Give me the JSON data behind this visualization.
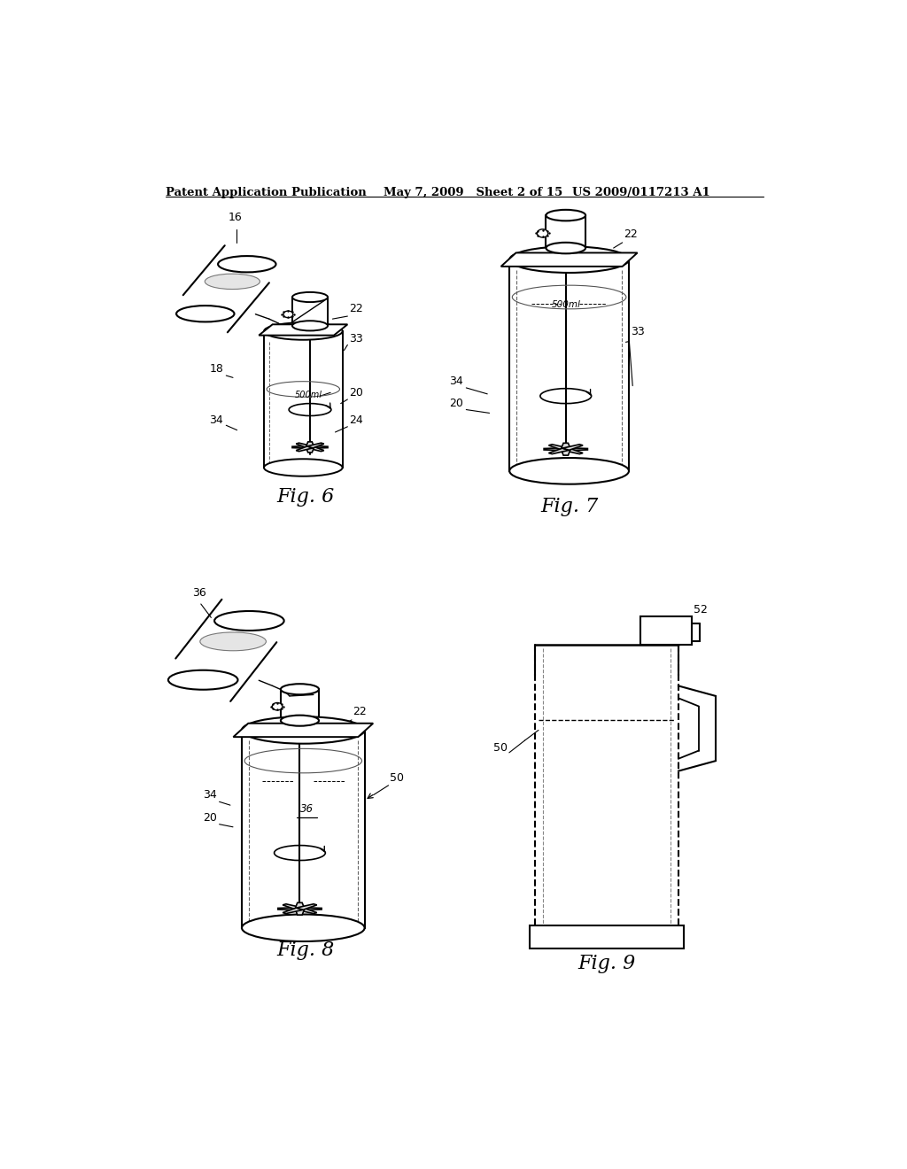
{
  "background_color": "#ffffff",
  "header_left": "Patent Application Publication",
  "header_mid": "May 7, 2009   Sheet 2 of 15",
  "header_right": "US 2009/0117213 A1",
  "fig6_label": "Fig. 6",
  "fig7_label": "Fig. 7",
  "fig8_label": "Fig. 8",
  "fig9_label": "Fig. 9",
  "line_color": "#000000",
  "text_color": "#000000"
}
